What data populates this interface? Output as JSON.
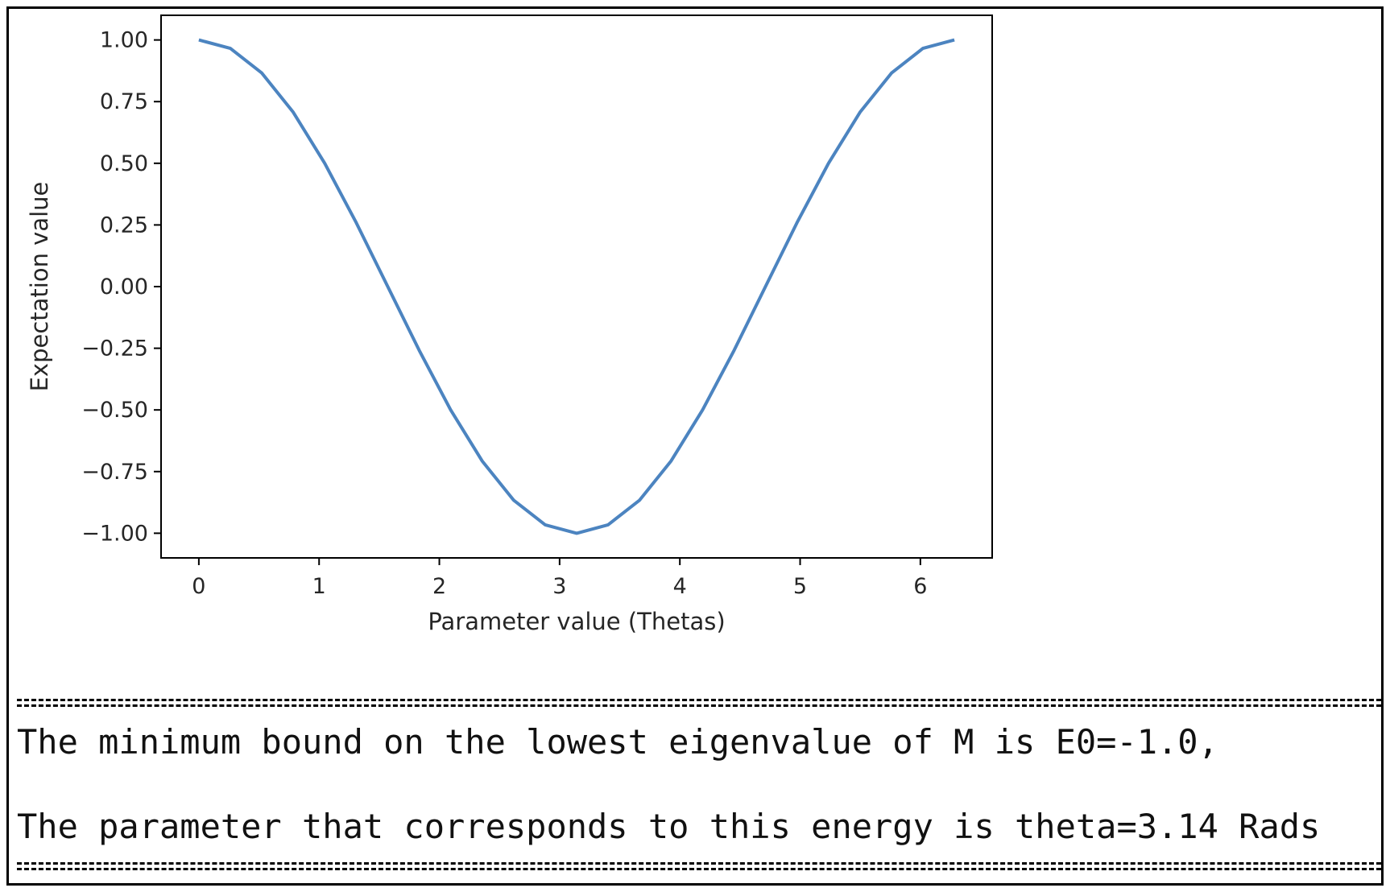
{
  "chart_data": {
    "type": "line",
    "title": "",
    "xlabel": "Parameter value (Thetas)",
    "ylabel": "Expectation value",
    "xlim": [
      -0.314,
      6.597
    ],
    "ylim": [
      -1.1,
      1.1
    ],
    "xticks": [
      "0",
      "1",
      "2",
      "3",
      "4",
      "5",
      "6"
    ],
    "yticks": [
      "1.00",
      "0.75",
      "0.50",
      "0.25",
      "0.00",
      "−0.25",
      "−0.50",
      "−0.75",
      "−1.00"
    ],
    "xtick_values": [
      0,
      1,
      2,
      3,
      4,
      5,
      6
    ],
    "ytick_values": [
      1.0,
      0.75,
      0.5,
      0.25,
      0.0,
      -0.25,
      -0.5,
      -0.75,
      -1.0
    ],
    "grid": false,
    "line_color": "#4c84c0",
    "series": [
      {
        "x": [
          0.0,
          0.262,
          0.524,
          0.785,
          1.047,
          1.309,
          1.571,
          1.833,
          2.094,
          2.356,
          2.618,
          2.88,
          3.142,
          3.403,
          3.665,
          3.927,
          4.189,
          4.451,
          4.712,
          4.974,
          5.236,
          5.498,
          5.76,
          6.021,
          6.283
        ],
        "y": [
          1.0,
          0.966,
          0.866,
          0.707,
          0.5,
          0.259,
          0.0,
          -0.259,
          -0.5,
          -0.707,
          -0.866,
          -0.966,
          -1.0,
          -0.966,
          -0.866,
          -0.707,
          -0.5,
          -0.259,
          0.0,
          0.259,
          0.5,
          0.707,
          0.866,
          0.966,
          1.0
        ]
      }
    ]
  },
  "output": {
    "separator": "==============================================================",
    "line1": "The minimum bound on the lowest eigenvalue of M is E0=-1.0,",
    "line2": "The parameter that corresponds to this energy is theta=3.14 Rads"
  }
}
